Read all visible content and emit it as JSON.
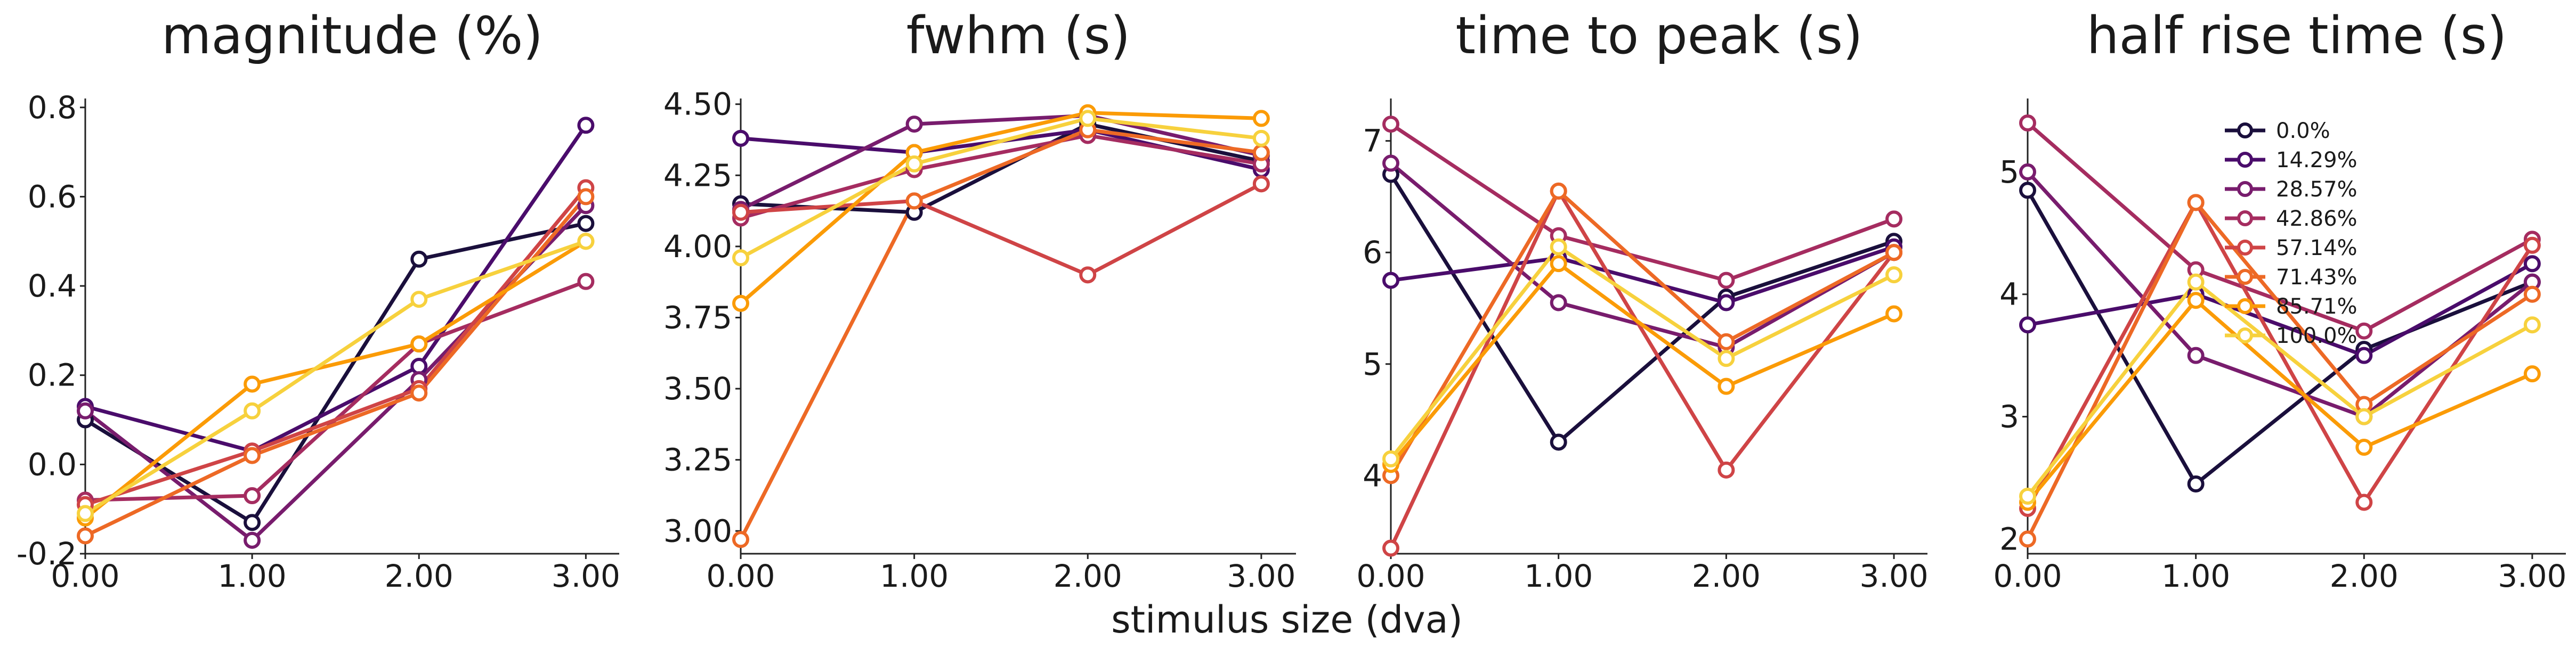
{
  "figure": {
    "xlabel": "stimulus size (dva)"
  },
  "chart_data": [
    {
      "type": "line",
      "title": "magnitude (%)",
      "x": [
        0,
        1,
        2,
        3
      ],
      "xticks": [
        "0.00",
        "1.00",
        "2.00",
        "3.00"
      ],
      "xlim": [
        0,
        3.2
      ],
      "ylim": [
        -0.2,
        0.82
      ],
      "yticks": [
        -0.2,
        0.0,
        0.2,
        0.4,
        0.6,
        0.8
      ],
      "ytick_labels": [
        "-0.2",
        "0.0",
        "0.2",
        "0.4",
        "0.6",
        "0.8"
      ],
      "series": [
        {
          "name": "0.0%",
          "values": [
            0.1,
            -0.13,
            0.46,
            0.54
          ]
        },
        {
          "name": "14.29%",
          "values": [
            0.13,
            0.03,
            0.22,
            0.76
          ]
        },
        {
          "name": "28.57%",
          "values": [
            0.12,
            -0.17,
            0.19,
            0.58
          ]
        },
        {
          "name": "42.86%",
          "values": [
            -0.08,
            -0.07,
            0.27,
            0.41
          ]
        },
        {
          "name": "57.14%",
          "values": [
            -0.09,
            0.03,
            0.17,
            0.62
          ]
        },
        {
          "name": "71.43%",
          "values": [
            -0.16,
            0.02,
            0.16,
            0.6
          ]
        },
        {
          "name": "85.71%",
          "values": [
            -0.12,
            0.18,
            0.27,
            0.5
          ]
        },
        {
          "name": "100.0%",
          "values": [
            -0.11,
            0.12,
            0.37,
            0.5
          ]
        }
      ]
    },
    {
      "type": "line",
      "title": "fwhm (s)",
      "x": [
        0,
        1,
        2,
        3
      ],
      "xticks": [
        "0.00",
        "1.00",
        "2.00",
        "3.00"
      ],
      "xlim": [
        0,
        3.2
      ],
      "ylim": [
        2.92,
        4.52
      ],
      "yticks": [
        3.0,
        3.25,
        3.5,
        3.75,
        4.0,
        4.25,
        4.5
      ],
      "ytick_labels": [
        "3.00",
        "3.25",
        "3.50",
        "3.75",
        "4.00",
        "4.25",
        "4.50"
      ],
      "series": [
        {
          "name": "0.0%",
          "values": [
            4.15,
            4.12,
            4.43,
            4.3
          ]
        },
        {
          "name": "14.29%",
          "values": [
            4.38,
            4.33,
            4.41,
            4.27
          ]
        },
        {
          "name": "28.57%",
          "values": [
            4.13,
            4.43,
            4.46,
            4.32
          ]
        },
        {
          "name": "42.86%",
          "values": [
            4.1,
            4.27,
            4.39,
            4.29
          ]
        },
        {
          "name": "57.14%",
          "values": [
            4.12,
            4.16,
            3.9,
            4.22
          ]
        },
        {
          "name": "71.43%",
          "values": [
            2.97,
            4.16,
            4.41,
            4.33
          ]
        },
        {
          "name": "85.71%",
          "values": [
            3.8,
            4.33,
            4.47,
            4.45
          ]
        },
        {
          "name": "100.0%",
          "values": [
            3.96,
            4.29,
            4.45,
            4.38
          ]
        }
      ]
    },
    {
      "type": "line",
      "title": "time to peak (s)",
      "x": [
        0,
        1,
        2,
        3
      ],
      "xticks": [
        "0.00",
        "1.00",
        "2.00",
        "3.00"
      ],
      "xlim": [
        0,
        3.2
      ],
      "ylim": [
        3.3,
        7.38
      ],
      "yticks": [
        4,
        5,
        6,
        7
      ],
      "ytick_labels": [
        "4",
        "5",
        "6",
        "7"
      ],
      "series": [
        {
          "name": "0.0%",
          "values": [
            6.7,
            4.3,
            5.6,
            6.1
          ]
        },
        {
          "name": "14.29%",
          "values": [
            5.75,
            5.95,
            5.55,
            6.05
          ]
        },
        {
          "name": "28.57%",
          "values": [
            6.8,
            5.55,
            5.15,
            6.0
          ]
        },
        {
          "name": "42.86%",
          "values": [
            7.15,
            6.15,
            5.75,
            6.3
          ]
        },
        {
          "name": "57.14%",
          "values": [
            3.35,
            6.55,
            4.05,
            6.0
          ]
        },
        {
          "name": "71.43%",
          "values": [
            4.0,
            6.55,
            5.2,
            6.0
          ]
        },
        {
          "name": "85.71%",
          "values": [
            4.1,
            5.9,
            4.8,
            5.45
          ]
        },
        {
          "name": "100.0%",
          "values": [
            4.15,
            6.05,
            5.05,
            5.8
          ]
        }
      ]
    },
    {
      "type": "line",
      "title": "half rise time (s)",
      "x": [
        0,
        1,
        2,
        3
      ],
      "xticks": [
        "0.00",
        "1.00",
        "2.00",
        "3.00"
      ],
      "xlim": [
        0,
        3.2
      ],
      "ylim": [
        1.88,
        5.6
      ],
      "yticks": [
        2,
        3,
        4,
        5
      ],
      "ytick_labels": [
        "2",
        "3",
        "4",
        "5"
      ],
      "legend": "top-right",
      "series": [
        {
          "name": "0.0%",
          "values": [
            4.85,
            2.45,
            3.55,
            4.1
          ]
        },
        {
          "name": "14.29%",
          "values": [
            3.75,
            4.0,
            3.5,
            4.25
          ]
        },
        {
          "name": "28.57%",
          "values": [
            5.0,
            3.5,
            3.0,
            4.1
          ]
        },
        {
          "name": "42.86%",
          "values": [
            5.4,
            4.2,
            3.7,
            4.45
          ]
        },
        {
          "name": "57.14%",
          "values": [
            2.25,
            4.75,
            2.3,
            4.4
          ]
        },
        {
          "name": "71.43%",
          "values": [
            2.0,
            4.75,
            3.1,
            4.0
          ]
        },
        {
          "name": "85.71%",
          "values": [
            2.3,
            3.95,
            2.75,
            3.35
          ]
        },
        {
          "name": "100.0%",
          "values": [
            2.35,
            4.1,
            3.0,
            3.75
          ]
        }
      ]
    }
  ],
  "colors": [
    "#1a0f3c",
    "#4a0c6b",
    "#781c6d",
    "#a52c60",
    "#cf4446",
    "#ed6925",
    "#fb9b06",
    "#f7d13d"
  ]
}
